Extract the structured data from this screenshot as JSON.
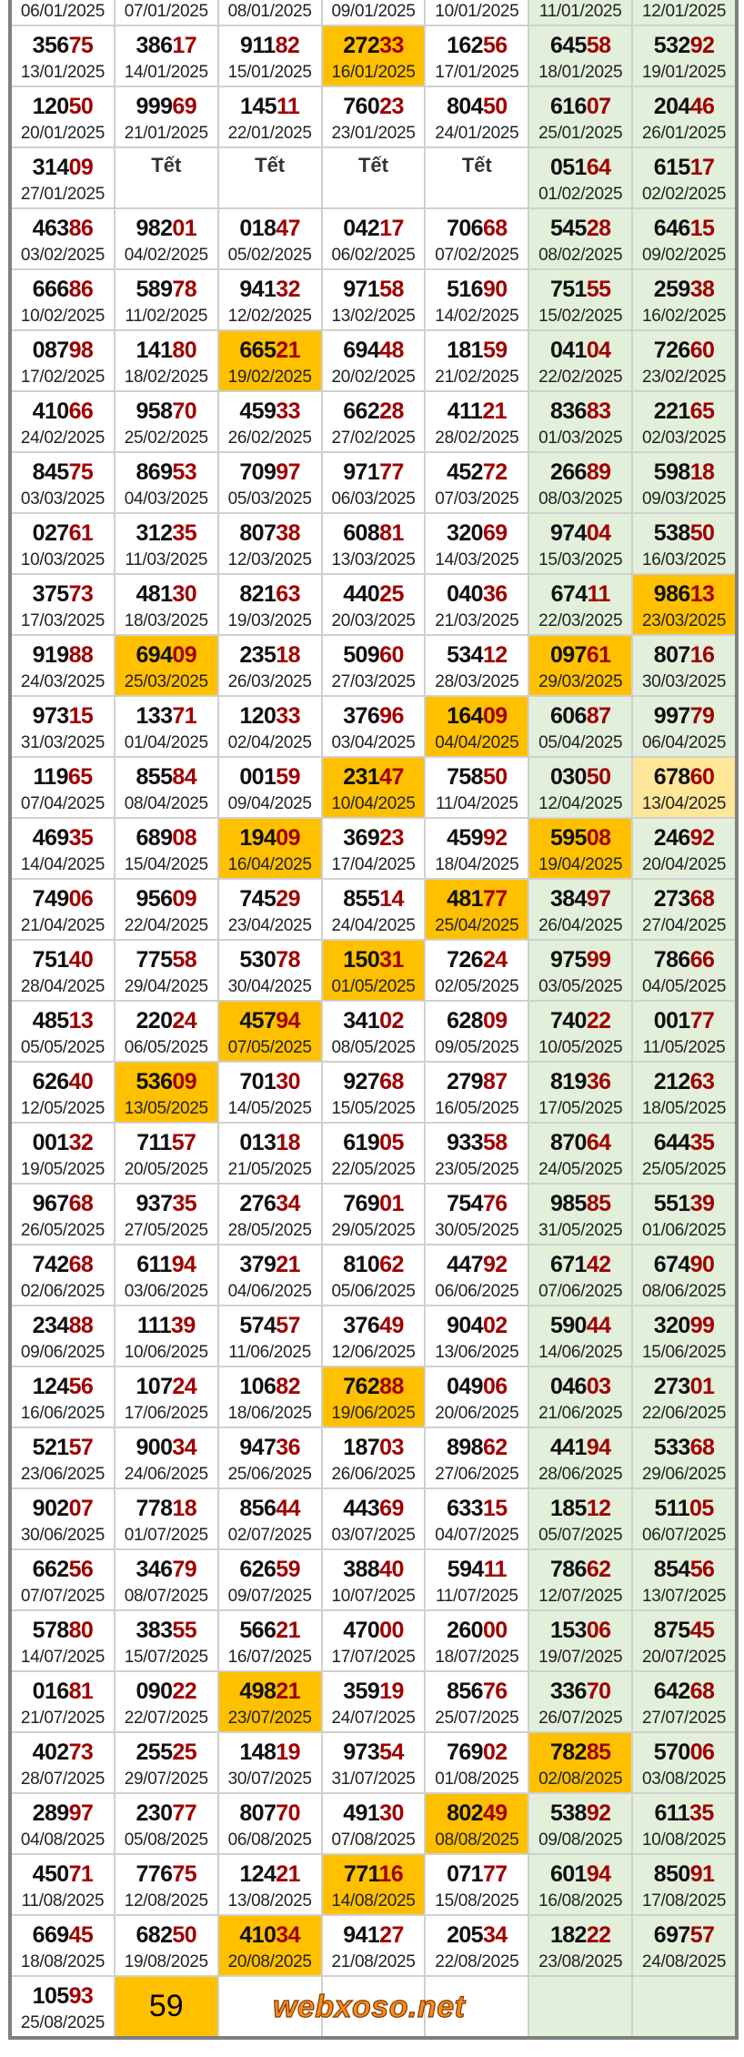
{
  "watermark": "webxoso.net",
  "colors": {
    "highlight": "#ffc000",
    "pending": "#ffe699",
    "weekend": "#e2efda",
    "tail_digits": "#a00000"
  },
  "top_dates": [
    "06/01/2025",
    "07/01/2025",
    "08/01/2025",
    "09/01/2025",
    "10/01/2025",
    "11/01/2025",
    "12/01/2025"
  ],
  "rows": [
    [
      [
        "35675",
        "13/01/2025",
        ""
      ],
      [
        "38617",
        "14/01/2025",
        ""
      ],
      [
        "91182",
        "15/01/2025",
        ""
      ],
      [
        "27233",
        "16/01/2025",
        "orange"
      ],
      [
        "16256",
        "17/01/2025",
        ""
      ],
      [
        "64558",
        "18/01/2025",
        ""
      ],
      [
        "53292",
        "19/01/2025",
        ""
      ]
    ],
    [
      [
        "12050",
        "20/01/2025",
        ""
      ],
      [
        "99969",
        "21/01/2025",
        ""
      ],
      [
        "14511",
        "22/01/2025",
        ""
      ],
      [
        "76023",
        "23/01/2025",
        ""
      ],
      [
        "80450",
        "24/01/2025",
        ""
      ],
      [
        "61607",
        "25/01/2025",
        ""
      ],
      [
        "20446",
        "26/01/2025",
        ""
      ]
    ],
    [
      [
        "31409",
        "27/01/2025",
        ""
      ],
      [
        "Tết",
        "",
        ""
      ],
      [
        "Tết",
        "",
        ""
      ],
      [
        "Tết",
        "",
        ""
      ],
      [
        "Tết",
        "",
        ""
      ],
      [
        "05164",
        "01/02/2025",
        ""
      ],
      [
        "61517",
        "02/02/2025",
        ""
      ]
    ],
    [
      [
        "46386",
        "03/02/2025",
        ""
      ],
      [
        "98201",
        "04/02/2025",
        ""
      ],
      [
        "01847",
        "05/02/2025",
        ""
      ],
      [
        "04217",
        "06/02/2025",
        ""
      ],
      [
        "70668",
        "07/02/2025",
        ""
      ],
      [
        "54528",
        "08/02/2025",
        ""
      ],
      [
        "64615",
        "09/02/2025",
        ""
      ]
    ],
    [
      [
        "66686",
        "10/02/2025",
        ""
      ],
      [
        "58978",
        "11/02/2025",
        ""
      ],
      [
        "94132",
        "12/02/2025",
        ""
      ],
      [
        "97158",
        "13/02/2025",
        ""
      ],
      [
        "51690",
        "14/02/2025",
        ""
      ],
      [
        "75155",
        "15/02/2025",
        ""
      ],
      [
        "25938",
        "16/02/2025",
        ""
      ]
    ],
    [
      [
        "08798",
        "17/02/2025",
        ""
      ],
      [
        "14180",
        "18/02/2025",
        ""
      ],
      [
        "66521",
        "19/02/2025",
        "orange"
      ],
      [
        "69448",
        "20/02/2025",
        ""
      ],
      [
        "18159",
        "21/02/2025",
        ""
      ],
      [
        "04104",
        "22/02/2025",
        ""
      ],
      [
        "72660",
        "23/02/2025",
        ""
      ]
    ],
    [
      [
        "41066",
        "24/02/2025",
        ""
      ],
      [
        "95870",
        "25/02/2025",
        ""
      ],
      [
        "45933",
        "26/02/2025",
        ""
      ],
      [
        "66228",
        "27/02/2025",
        ""
      ],
      [
        "41121",
        "28/02/2025",
        ""
      ],
      [
        "83683",
        "01/03/2025",
        ""
      ],
      [
        "22165",
        "02/03/2025",
        ""
      ]
    ],
    [
      [
        "84575",
        "03/03/2025",
        ""
      ],
      [
        "86953",
        "04/03/2025",
        ""
      ],
      [
        "70997",
        "05/03/2025",
        ""
      ],
      [
        "97177",
        "06/03/2025",
        ""
      ],
      [
        "45272",
        "07/03/2025",
        ""
      ],
      [
        "26689",
        "08/03/2025",
        ""
      ],
      [
        "59818",
        "09/03/2025",
        ""
      ]
    ],
    [
      [
        "02761",
        "10/03/2025",
        ""
      ],
      [
        "31235",
        "11/03/2025",
        ""
      ],
      [
        "80738",
        "12/03/2025",
        ""
      ],
      [
        "60881",
        "13/03/2025",
        ""
      ],
      [
        "32069",
        "14/03/2025",
        ""
      ],
      [
        "97404",
        "15/03/2025",
        ""
      ],
      [
        "53850",
        "16/03/2025",
        ""
      ]
    ],
    [
      [
        "37573",
        "17/03/2025",
        ""
      ],
      [
        "48130",
        "18/03/2025",
        ""
      ],
      [
        "82163",
        "19/03/2025",
        ""
      ],
      [
        "44025",
        "20/03/2025",
        ""
      ],
      [
        "04036",
        "21/03/2025",
        ""
      ],
      [
        "67411",
        "22/03/2025",
        ""
      ],
      [
        "98613",
        "23/03/2025",
        "orange"
      ]
    ],
    [
      [
        "91988",
        "24/03/2025",
        ""
      ],
      [
        "69409",
        "25/03/2025",
        "orange"
      ],
      [
        "23518",
        "26/03/2025",
        ""
      ],
      [
        "50960",
        "27/03/2025",
        ""
      ],
      [
        "53412",
        "28/03/2025",
        ""
      ],
      [
        "09761",
        "29/03/2025",
        "orange"
      ],
      [
        "80716",
        "30/03/2025",
        ""
      ]
    ],
    [
      [
        "97315",
        "31/03/2025",
        ""
      ],
      [
        "13371",
        "01/04/2025",
        ""
      ],
      [
        "12033",
        "02/04/2025",
        ""
      ],
      [
        "37696",
        "03/04/2025",
        ""
      ],
      [
        "16409",
        "04/04/2025",
        "orange"
      ],
      [
        "60687",
        "05/04/2025",
        ""
      ],
      [
        "99779",
        "06/04/2025",
        ""
      ]
    ],
    [
      [
        "11965",
        "07/04/2025",
        ""
      ],
      [
        "85584",
        "08/04/2025",
        ""
      ],
      [
        "00159",
        "09/04/2025",
        ""
      ],
      [
        "23147",
        "10/04/2025",
        "orange"
      ],
      [
        "75850",
        "11/04/2025",
        ""
      ],
      [
        "03050",
        "12/04/2025",
        ""
      ],
      [
        "67860",
        "13/04/2025",
        "yellow"
      ]
    ],
    [
      [
        "46935",
        "14/04/2025",
        ""
      ],
      [
        "68908",
        "15/04/2025",
        ""
      ],
      [
        "19409",
        "16/04/2025",
        "orange"
      ],
      [
        "36923",
        "17/04/2025",
        ""
      ],
      [
        "45992",
        "18/04/2025",
        ""
      ],
      [
        "59508",
        "19/04/2025",
        "orange"
      ],
      [
        "24692",
        "20/04/2025",
        ""
      ]
    ],
    [
      [
        "74906",
        "21/04/2025",
        ""
      ],
      [
        "95609",
        "22/04/2025",
        ""
      ],
      [
        "74529",
        "23/04/2025",
        ""
      ],
      [
        "85514",
        "24/04/2025",
        ""
      ],
      [
        "48177",
        "25/04/2025",
        "orange"
      ],
      [
        "38497",
        "26/04/2025",
        ""
      ],
      [
        "27368",
        "27/04/2025",
        ""
      ]
    ],
    [
      [
        "75140",
        "28/04/2025",
        ""
      ],
      [
        "77558",
        "29/04/2025",
        ""
      ],
      [
        "53078",
        "30/04/2025",
        ""
      ],
      [
        "15031",
        "01/05/2025",
        "orange"
      ],
      [
        "72624",
        "02/05/2025",
        ""
      ],
      [
        "97599",
        "03/05/2025",
        ""
      ],
      [
        "78666",
        "04/05/2025",
        ""
      ]
    ],
    [
      [
        "48513",
        "05/05/2025",
        ""
      ],
      [
        "22024",
        "06/05/2025",
        ""
      ],
      [
        "45794",
        "07/05/2025",
        "orange"
      ],
      [
        "34102",
        "08/05/2025",
        ""
      ],
      [
        "62809",
        "09/05/2025",
        ""
      ],
      [
        "74022",
        "10/05/2025",
        ""
      ],
      [
        "00177",
        "11/05/2025",
        ""
      ]
    ],
    [
      [
        "62640",
        "12/05/2025",
        ""
      ],
      [
        "53609",
        "13/05/2025",
        "orange"
      ],
      [
        "70130",
        "14/05/2025",
        ""
      ],
      [
        "92768",
        "15/05/2025",
        ""
      ],
      [
        "27987",
        "16/05/2025",
        ""
      ],
      [
        "81936",
        "17/05/2025",
        ""
      ],
      [
        "21263",
        "18/05/2025",
        ""
      ]
    ],
    [
      [
        "00132",
        "19/05/2025",
        ""
      ],
      [
        "71157",
        "20/05/2025",
        ""
      ],
      [
        "01318",
        "21/05/2025",
        ""
      ],
      [
        "61905",
        "22/05/2025",
        ""
      ],
      [
        "93358",
        "23/05/2025",
        ""
      ],
      [
        "87064",
        "24/05/2025",
        ""
      ],
      [
        "64435",
        "25/05/2025",
        ""
      ]
    ],
    [
      [
        "96768",
        "26/05/2025",
        ""
      ],
      [
        "93735",
        "27/05/2025",
        ""
      ],
      [
        "27634",
        "28/05/2025",
        ""
      ],
      [
        "76901",
        "29/05/2025",
        ""
      ],
      [
        "75476",
        "30/05/2025",
        ""
      ],
      [
        "98585",
        "31/05/2025",
        ""
      ],
      [
        "55139",
        "01/06/2025",
        ""
      ]
    ],
    [
      [
        "74268",
        "02/06/2025",
        ""
      ],
      [
        "61194",
        "03/06/2025",
        ""
      ],
      [
        "37921",
        "04/06/2025",
        ""
      ],
      [
        "81062",
        "05/06/2025",
        ""
      ],
      [
        "44792",
        "06/06/2025",
        ""
      ],
      [
        "67142",
        "07/06/2025",
        ""
      ],
      [
        "67490",
        "08/06/2025",
        ""
      ]
    ],
    [
      [
        "23488",
        "09/06/2025",
        ""
      ],
      [
        "11139",
        "10/06/2025",
        ""
      ],
      [
        "57457",
        "11/06/2025",
        ""
      ],
      [
        "37649",
        "12/06/2025",
        ""
      ],
      [
        "90402",
        "13/06/2025",
        ""
      ],
      [
        "59044",
        "14/06/2025",
        ""
      ],
      [
        "32099",
        "15/06/2025",
        ""
      ]
    ],
    [
      [
        "12456",
        "16/06/2025",
        ""
      ],
      [
        "10724",
        "17/06/2025",
        ""
      ],
      [
        "10682",
        "18/06/2025",
        ""
      ],
      [
        "76288",
        "19/06/2025",
        "orange"
      ],
      [
        "04906",
        "20/06/2025",
        ""
      ],
      [
        "04603",
        "21/06/2025",
        ""
      ],
      [
        "27301",
        "22/06/2025",
        ""
      ]
    ],
    [
      [
        "52157",
        "23/06/2025",
        ""
      ],
      [
        "90034",
        "24/06/2025",
        ""
      ],
      [
        "94736",
        "25/06/2025",
        ""
      ],
      [
        "18703",
        "26/06/2025",
        ""
      ],
      [
        "89862",
        "27/06/2025",
        ""
      ],
      [
        "44194",
        "28/06/2025",
        ""
      ],
      [
        "53368",
        "29/06/2025",
        ""
      ]
    ],
    [
      [
        "90207",
        "30/06/2025",
        ""
      ],
      [
        "77818",
        "01/07/2025",
        ""
      ],
      [
        "85644",
        "02/07/2025",
        ""
      ],
      [
        "44369",
        "03/07/2025",
        ""
      ],
      [
        "63315",
        "04/07/2025",
        ""
      ],
      [
        "18512",
        "05/07/2025",
        ""
      ],
      [
        "51105",
        "06/07/2025",
        ""
      ]
    ],
    [
      [
        "66256",
        "07/07/2025",
        ""
      ],
      [
        "34679",
        "08/07/2025",
        ""
      ],
      [
        "62659",
        "09/07/2025",
        ""
      ],
      [
        "38840",
        "10/07/2025",
        ""
      ],
      [
        "59411",
        "11/07/2025",
        ""
      ],
      [
        "78662",
        "12/07/2025",
        ""
      ],
      [
        "85456",
        "13/07/2025",
        ""
      ]
    ],
    [
      [
        "57880",
        "14/07/2025",
        ""
      ],
      [
        "38355",
        "15/07/2025",
        ""
      ],
      [
        "56621",
        "16/07/2025",
        ""
      ],
      [
        "47000",
        "17/07/2025",
        ""
      ],
      [
        "26000",
        "18/07/2025",
        ""
      ],
      [
        "15306",
        "19/07/2025",
        ""
      ],
      [
        "87545",
        "20/07/2025",
        ""
      ]
    ],
    [
      [
        "01681",
        "21/07/2025",
        ""
      ],
      [
        "09022",
        "22/07/2025",
        ""
      ],
      [
        "49821",
        "23/07/2025",
        "orange"
      ],
      [
        "35919",
        "24/07/2025",
        ""
      ],
      [
        "85676",
        "25/07/2025",
        ""
      ],
      [
        "33670",
        "26/07/2025",
        ""
      ],
      [
        "64268",
        "27/07/2025",
        ""
      ]
    ],
    [
      [
        "40273",
        "28/07/2025",
        ""
      ],
      [
        "25525",
        "29/07/2025",
        ""
      ],
      [
        "14819",
        "30/07/2025",
        ""
      ],
      [
        "97354",
        "31/07/2025",
        ""
      ],
      [
        "76902",
        "01/08/2025",
        ""
      ],
      [
        "78285",
        "02/08/2025",
        "orange"
      ],
      [
        "57006",
        "03/08/2025",
        ""
      ]
    ],
    [
      [
        "28997",
        "04/08/2025",
        ""
      ],
      [
        "23077",
        "05/08/2025",
        ""
      ],
      [
        "80770",
        "06/08/2025",
        ""
      ],
      [
        "49130",
        "07/08/2025",
        ""
      ],
      [
        "80249",
        "08/08/2025",
        "orange"
      ],
      [
        "53892",
        "09/08/2025",
        ""
      ],
      [
        "61135",
        "10/08/2025",
        ""
      ]
    ],
    [
      [
        "45071",
        "11/08/2025",
        ""
      ],
      [
        "77675",
        "12/08/2025",
        ""
      ],
      [
        "12421",
        "13/08/2025",
        ""
      ],
      [
        "77116",
        "14/08/2025",
        "orange"
      ],
      [
        "07177",
        "15/08/2025",
        ""
      ],
      [
        "60194",
        "16/08/2025",
        ""
      ],
      [
        "85091",
        "17/08/2025",
        ""
      ]
    ],
    [
      [
        "66945",
        "18/08/2025",
        ""
      ],
      [
        "68250",
        "19/08/2025",
        ""
      ],
      [
        "41034",
        "20/08/2025",
        "orange"
      ],
      [
        "94127",
        "21/08/2025",
        ""
      ],
      [
        "20534",
        "22/08/2025",
        ""
      ],
      [
        "18222",
        "23/08/2025",
        ""
      ],
      [
        "69757",
        "24/08/2025",
        ""
      ]
    ],
    [
      [
        "10593",
        "25/08/2025",
        ""
      ],
      [
        "59",
        "",
        "orange"
      ],
      [
        "",
        "",
        ""
      ],
      [
        "",
        "",
        ""
      ],
      [
        "",
        "",
        ""
      ],
      [
        "",
        "",
        ""
      ],
      [
        "",
        "",
        ""
      ]
    ]
  ]
}
